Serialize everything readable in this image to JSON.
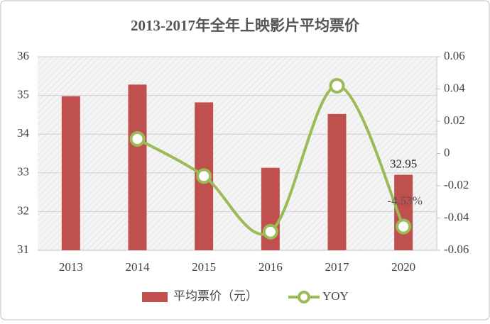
{
  "chart_data": {
    "type": "bar",
    "title": "2013-2017年全年上映影片平均票价",
    "categories": [
      "2013",
      "2014",
      "2015",
      "2016",
      "2017",
      "2020"
    ],
    "series": [
      {
        "name": "平均票价（元）",
        "type": "bar",
        "color": "#c0504d",
        "values": [
          34.98,
          35.28,
          34.82,
          33.13,
          34.52,
          32.95
        ],
        "value_labels": [
          null,
          null,
          null,
          null,
          null,
          "32.95"
        ]
      },
      {
        "name": "YOY",
        "type": "line",
        "axis": "y2",
        "color": "#9bbb59",
        "values": [
          null,
          0.009,
          -0.014,
          -0.0485,
          0.042,
          -0.0453
        ],
        "value_labels": [
          null,
          null,
          null,
          null,
          null,
          "-4.53%"
        ]
      }
    ],
    "ylim": [
      31,
      36
    ],
    "yticks": [
      31,
      32,
      33,
      34,
      35,
      36
    ],
    "y2lim": [
      -0.06,
      0.06
    ],
    "y2ticks": [
      -0.06,
      -0.04,
      -0.02,
      0,
      0.02,
      0.04,
      0.06
    ],
    "grid": true,
    "legend": "bottom"
  }
}
